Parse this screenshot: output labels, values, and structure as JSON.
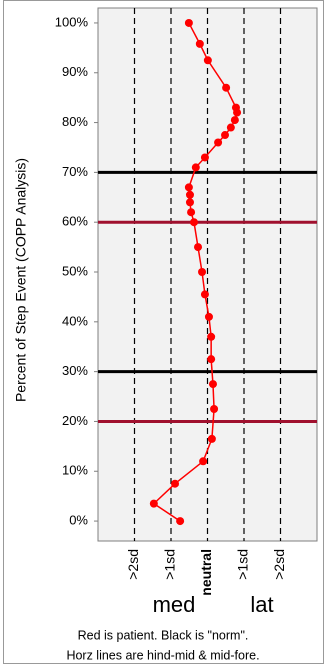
{
  "chart_data": {
    "type": "line",
    "ylabel": "Percent of Step Event (COPP Analysis)",
    "x": [
      -0.51,
      -0.21,
      0.01,
      0.51,
      0.78,
      0.81,
      0.75,
      0.64,
      0.48,
      0.29,
      -0.07,
      -0.32,
      -0.51,
      -0.48,
      -0.48,
      -0.45,
      -0.37,
      -0.26,
      -0.15,
      -0.07,
      0.04,
      0.1,
      0.1,
      0.15,
      0.18,
      0.12,
      -0.12,
      -0.89,
      -1.47,
      -0.75
    ],
    "series": [
      {
        "color": "#ff0000",
        "values": [
          100,
          95.8,
          92.5,
          87,
          83,
          82,
          80.5,
          79,
          77.5,
          76,
          73,
          71,
          67,
          65.5,
          64,
          62,
          60,
          55,
          50,
          45.5,
          41,
          37,
          32.5,
          27.5,
          22.5,
          16.5,
          12,
          7.5,
          3.5,
          0
        ]
      }
    ],
    "xlim": [
      -3,
      3
    ],
    "ylim": [
      -4,
      103
    ],
    "yticks": [
      {
        "value": 0,
        "label": "0%"
      },
      {
        "value": 10,
        "label": "10%"
      },
      {
        "value": 20,
        "label": "20%"
      },
      {
        "value": 30,
        "label": "30%"
      },
      {
        "value": 40,
        "label": "40%"
      },
      {
        "value": 50,
        "label": "50%"
      },
      {
        "value": 60,
        "label": "60%"
      },
      {
        "value": 70,
        "label": "70%"
      },
      {
        "value": 80,
        "label": "80%"
      },
      {
        "value": 90,
        "label": "90%"
      },
      {
        "value": 100,
        "label": "100%"
      }
    ],
    "xticks": [
      {
        "value": -2,
        "label": ">2sd"
      },
      {
        "value": -1,
        "label": ">1sd"
      },
      {
        "value": 0,
        "label": "neutral"
      },
      {
        "value": 1,
        "label": ">1sd"
      },
      {
        "value": 2,
        "label": ">2sd"
      }
    ],
    "grid": true,
    "reference_lines": [
      {
        "value": 70,
        "color": "#000000"
      },
      {
        "value": 60,
        "color": "#a0102e"
      },
      {
        "value": 30,
        "color": "#000000"
      },
      {
        "value": 20,
        "color": "#a0102e"
      }
    ],
    "annotations": [
      "med",
      "lat"
    ],
    "notes": [
      "Red is patient.  Black is \"norm\".",
      "Horz lines are hind-mid & mid-fore."
    ]
  }
}
